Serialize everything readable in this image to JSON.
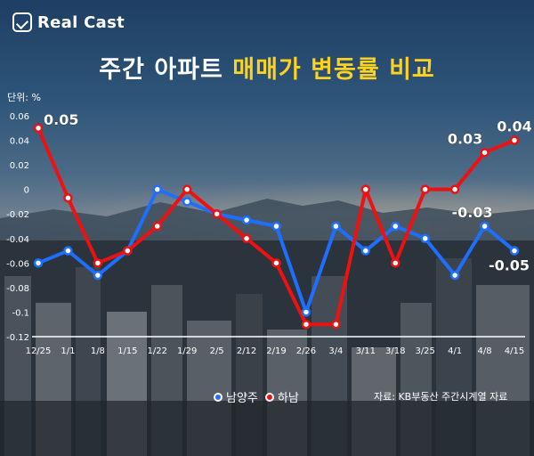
{
  "brand": {
    "name": "Real Cast"
  },
  "title": {
    "normal": "주간 아파트 ",
    "highlight": "매매가 변동률 비교"
  },
  "unit_label": "단위: %",
  "source": "자료: KB부동산 주간시계열 자료",
  "colors": {
    "namyangju": "#1f6fff",
    "hanam": "#ee1111",
    "title_highlight": "#ffd21f"
  },
  "chart_data": {
    "type": "line",
    "categories": [
      "12/25",
      "1/1",
      "1/8",
      "1/15",
      "1/22",
      "1/29",
      "2/5",
      "2/12",
      "2/19",
      "2/26",
      "3/4",
      "3/11",
      "3/18",
      "3/25",
      "4/1",
      "4/8",
      "4/15"
    ],
    "ylim": [
      -0.12,
      0.06
    ],
    "yticks": [
      0.06,
      0.04,
      0.02,
      0,
      -0.02,
      -0.04,
      -0.06,
      -0.08,
      -0.1,
      -0.12
    ],
    "ytick_labels": [
      "0.06",
      "0.04",
      "0.02",
      "0",
      "-0.02",
      "-0.04",
      "-0.06",
      "-0.08",
      "-0.1",
      "-0.12"
    ],
    "grid": false,
    "legend_position": "bottom",
    "series": [
      {
        "name": "남양주",
        "color": "#1f6fff",
        "values": [
          -0.06,
          -0.05,
          -0.07,
          -0.05,
          0.0,
          -0.01,
          -0.02,
          -0.025,
          -0.03,
          -0.1,
          -0.03,
          -0.05,
          -0.03,
          -0.04,
          -0.07,
          -0.03,
          -0.05
        ]
      },
      {
        "name": "하남",
        "color": "#ee1111",
        "values": [
          0.05,
          -0.007,
          -0.06,
          -0.05,
          -0.03,
          0.0,
          -0.02,
          -0.04,
          -0.06,
          -0.11,
          -0.11,
          0.0,
          -0.06,
          0.0,
          0.0,
          0.03,
          0.04
        ]
      }
    ],
    "annotations": [
      {
        "series": 1,
        "index": 0,
        "text": "0.05"
      },
      {
        "series": 1,
        "index": 15,
        "text": "0.03"
      },
      {
        "series": 1,
        "index": 16,
        "text": "0.04"
      },
      {
        "series": 0,
        "index": 15,
        "text": "-0.03"
      },
      {
        "series": 0,
        "index": 16,
        "text": "-0.05"
      }
    ]
  }
}
